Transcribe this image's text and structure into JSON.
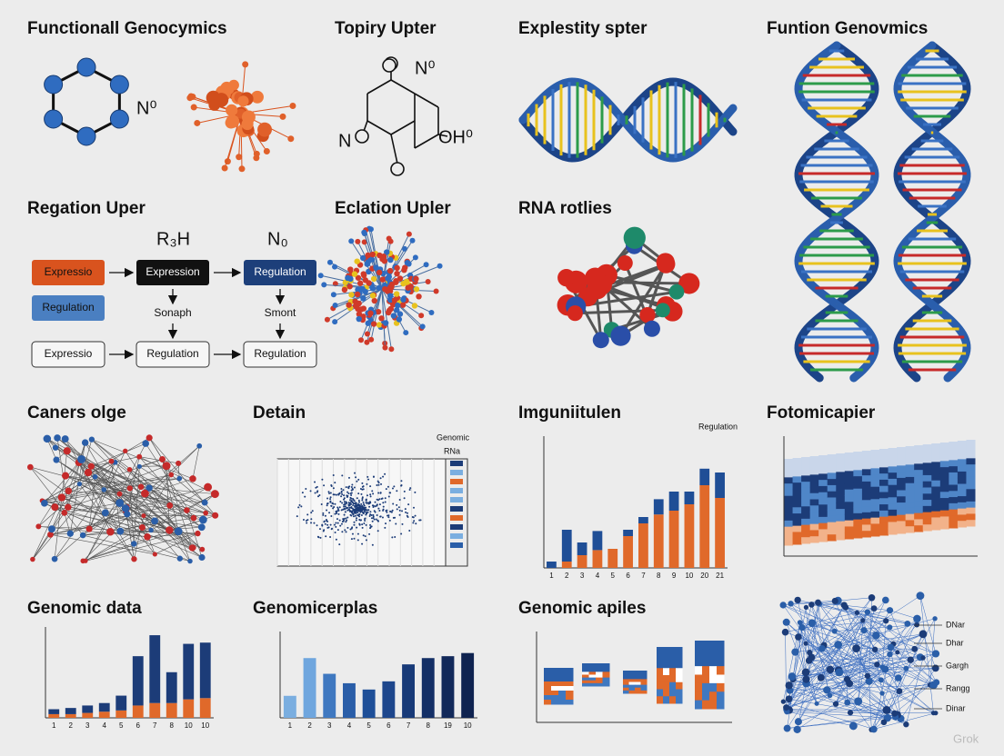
{
  "titles": [
    "Functionall Genocymics",
    "Topiry Upter",
    "Explestity spter",
    "Funtion Genovmics",
    "Regation Uper",
    "Eclation Upler",
    "RNA rotlies",
    "Caners olge",
    "Detain",
    "Imguniitulen",
    "Fotomicapier",
    "Genomic data",
    "Genomicerplas",
    "Genomic apiles"
  ],
  "molecule_labels": {
    "hexagon": "N⁰",
    "ring_top": "N⁰",
    "ring_left": "N",
    "ring_right": "OH⁰"
  },
  "flowchart": {
    "top": [
      "R₃H",
      "N₀"
    ],
    "row1": [
      "Expressio",
      "Expression",
      "Regulation"
    ],
    "row2": [
      "Regulation"
    ],
    "notes": [
      "Sonaph",
      "Smont"
    ],
    "row3": [
      "Expressio",
      "Regulation",
      "Regulation"
    ]
  },
  "detain_legend": [
    "Genomic",
    "RNa"
  ],
  "imguniitulen_label": "Regulation",
  "network_labels": [
    "DNar",
    "Dhar",
    "Gargh",
    "Rangg",
    "Dinar"
  ],
  "watermark": "Grok",
  "charts": {
    "genomic_data": {
      "type": "bar",
      "categories": [
        "1",
        "2",
        "3",
        "4",
        "5",
        "6",
        "7",
        "8",
        "10",
        "10"
      ],
      "ylim": [
        0,
        70
      ],
      "series": [
        {
          "color": "#e0692a",
          "values": [
            3,
            3,
            4,
            5,
            6,
            10,
            12,
            12,
            15,
            16
          ]
        },
        {
          "color": "#1c3c78",
          "values": [
            4,
            5,
            6,
            7,
            12,
            40,
            55,
            25,
            45,
            45
          ]
        }
      ]
    },
    "genomicerplas": {
      "type": "bar",
      "categories": [
        "1",
        "2",
        "3",
        "4",
        "5",
        "6",
        "7",
        "8",
        "19",
        "10"
      ],
      "ylim": [
        0,
        130
      ],
      "series": [
        {
          "colors": [
            "#7aaee0",
            "#6fa6de",
            "#3f78c0",
            "#2a5ea8",
            "#1e4f98",
            "#1d468c",
            "#183a78",
            "#142f66",
            "#12295a",
            "#0f2350"
          ],
          "values": [
            35,
            95,
            70,
            55,
            45,
            58,
            85,
            95,
            98,
            103
          ]
        }
      ]
    },
    "imguniitulen": {
      "type": "bar",
      "categories": [
        "1",
        "2",
        "3",
        "4",
        "5",
        "6",
        "7",
        "8",
        "9",
        "10",
        "20",
        "21"
      ],
      "ylim": [
        0,
        100
      ],
      "series": [
        {
          "color": "#e0692a",
          "values": [
            0,
            5,
            10,
            14,
            15,
            25,
            35,
            42,
            45,
            50,
            65,
            55
          ]
        },
        {
          "color": "#1f4e96",
          "values": [
            5,
            25,
            10,
            15,
            0,
            5,
            5,
            12,
            15,
            10,
            13,
            20
          ]
        }
      ]
    }
  }
}
